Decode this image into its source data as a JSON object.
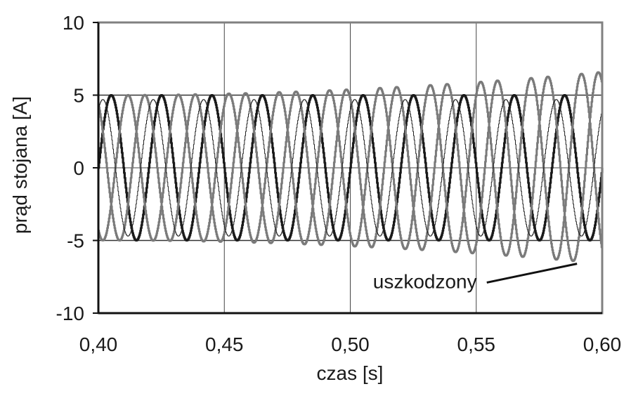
{
  "chart_data": {
    "type": "line",
    "title": "",
    "xlabel": "czas [s]",
    "ylabel": "prąd stojana [A]",
    "xlim": [
      0.4,
      0.6
    ],
    "ylim": [
      -10,
      10
    ],
    "x_ticks": [
      0.4,
      0.45,
      0.5,
      0.55,
      0.6
    ],
    "x_tick_labels": [
      "0,40",
      "0,45",
      "0,50",
      "0,55",
      "0,60"
    ],
    "y_ticks": [
      10,
      5,
      0,
      -5,
      -10
    ],
    "y_tick_labels": [
      "10",
      "5",
      "0",
      "-5",
      "-10"
    ],
    "grid": true,
    "reference_lines_y": [
      5,
      -5
    ],
    "series": [
      {
        "color": "#1a1a1a",
        "frequency_hz": 50,
        "amplitude_A": 5.0,
        "phase_deg": 0,
        "amplitude_end_A": 5.0
      },
      {
        "color": "#7a7a7a",
        "frequency_hz": 50,
        "amplitude_A": 5.0,
        "phase_deg": 120,
        "amplitude_end_A": 6.6
      },
      {
        "color": "#7a7a7a",
        "frequency_hz": 50,
        "amplitude_A": 5.0,
        "phase_deg": -120,
        "amplitude_end_A": 6.6
      },
      {
        "color": "#222222",
        "frequency_hz": 50,
        "amplitude_A": 4.7,
        "phase_deg": 60,
        "amplitude_end_A": 4.7
      }
    ],
    "annotations": [
      {
        "text": "uszkodzony",
        "x": 0.509,
        "y": -7.8,
        "arrow_to": [
          0.59,
          -6.6
        ]
      }
    ]
  }
}
